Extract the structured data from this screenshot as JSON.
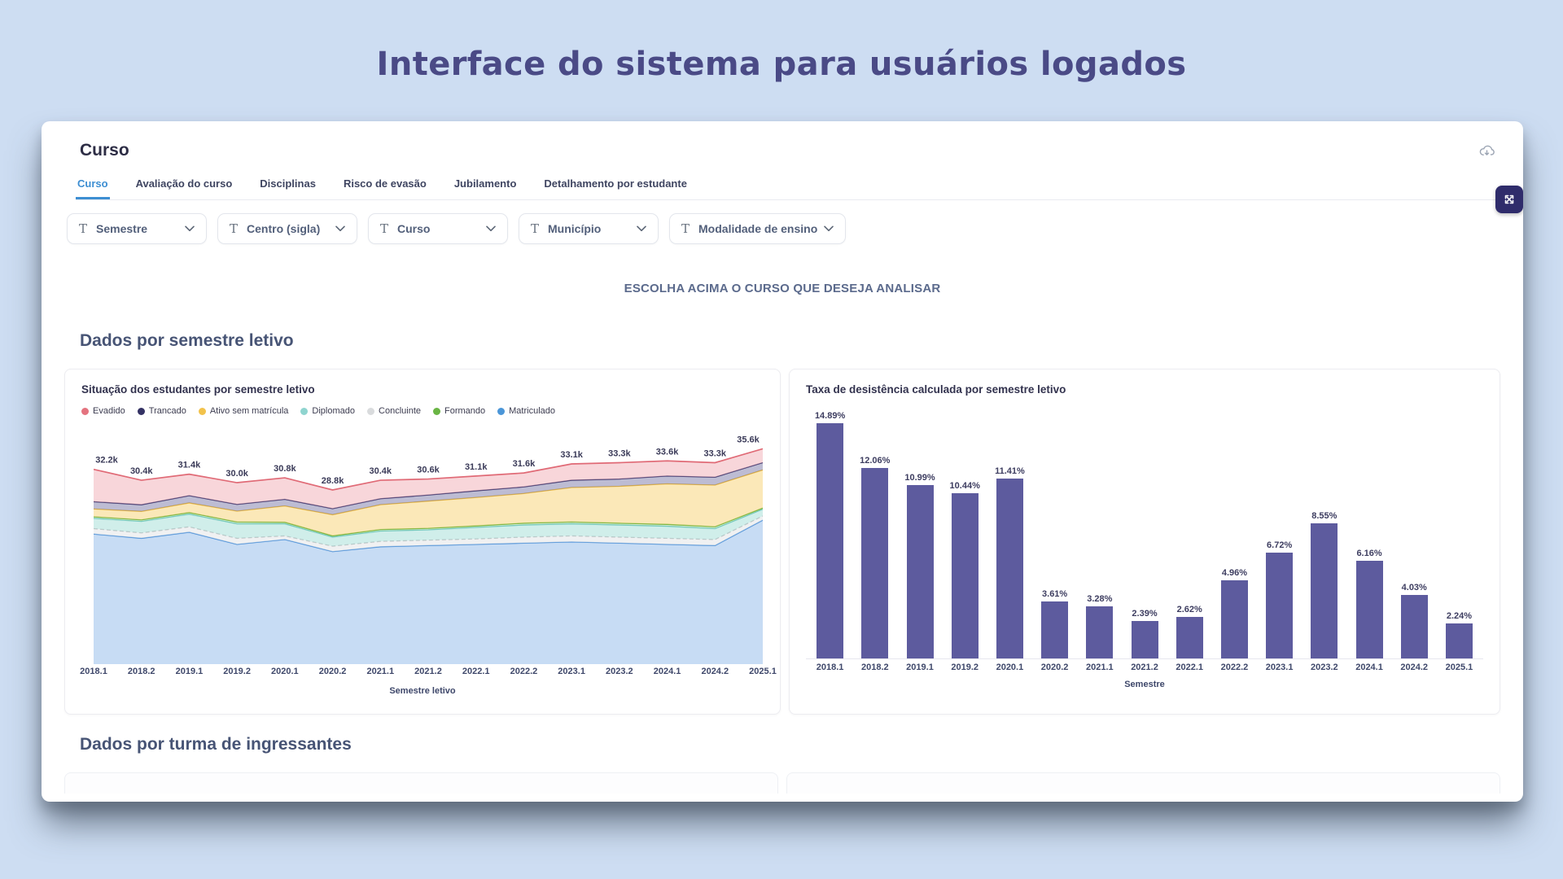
{
  "page_title": "Interface do sistema para usuários logados",
  "card": {
    "title": "Curso",
    "tabs": [
      {
        "label": "Curso",
        "active": true
      },
      {
        "label": "Avaliação do curso",
        "active": false
      },
      {
        "label": "Disciplinas",
        "active": false
      },
      {
        "label": "Risco de evasão",
        "active": false
      },
      {
        "label": "Jubilamento",
        "active": false
      },
      {
        "label": "Detalhamento por estudante",
        "active": false
      }
    ],
    "filters": [
      {
        "label": "Semestre"
      },
      {
        "label": "Centro (sigla)"
      },
      {
        "label": "Curso"
      },
      {
        "label": "Município"
      },
      {
        "label": "Modalidade de ensino"
      }
    ],
    "notice": "ESCOLHA ACIMA O CURSO QUE DESEJA ANALISAR",
    "section_semester_title": "Dados por semestre letivo",
    "section_cohort_title": "Dados por turma de ingressantes"
  },
  "icons": {
    "download": "cloud-download-icon",
    "expand": "expand-arrows-icon",
    "filter": "text-filter-icon",
    "chevron": "chevron-down-icon"
  },
  "colors": {
    "background": "#cdddf2",
    "title_indigo": "#4a4a86",
    "tab_active": "#3d8ed2",
    "bar": "#5d5b9e",
    "expand_button": "#2f2c6b"
  },
  "chart_data": [
    {
      "type": "area",
      "title": "Situação dos estudantes por semestre letivo",
      "xlabel": "Semestre letivo",
      "categories": [
        "2018.1",
        "2018.2",
        "2019.1",
        "2019.2",
        "2020.1",
        "2020.2",
        "2021.1",
        "2021.2",
        "2022.1",
        "2022.2",
        "2023.1",
        "2023.2",
        "2024.1",
        "2024.2",
        "2025.1"
      ],
      "total_labels": [
        "32.2k",
        "30.4k",
        "31.4k",
        "30.0k",
        "30.8k",
        "28.8k",
        "30.4k",
        "30.6k",
        "31.1k",
        "31.6k",
        "33.1k",
        "33.3k",
        "33.6k",
        "33.3k",
        "35.6k"
      ],
      "totals_k": [
        32.2,
        30.4,
        31.4,
        30.0,
        30.8,
        28.8,
        30.4,
        30.6,
        31.1,
        31.6,
        33.1,
        33.3,
        33.6,
        33.3,
        35.6
      ],
      "ylim_k": [
        0,
        37
      ],
      "grid": false,
      "legend_position": "top",
      "legend": [
        {
          "label": "Evadido",
          "color": "#e4737f"
        },
        {
          "label": "Trancado",
          "color": "#343264"
        },
        {
          "label": "Ativo sem matrícula",
          "color": "#f2c24b"
        },
        {
          "label": "Diplomado",
          "color": "#8fd4cf"
        },
        {
          "label": "Concluinte",
          "color": "#d9dbdd"
        },
        {
          "label": "Formando",
          "color": "#6ab544"
        },
        {
          "label": "Matriculado",
          "color": "#4b96d8"
        }
      ],
      "series_estimated_from_pixels": true,
      "series_bottom_up": [
        {
          "name": "Matriculado",
          "line": "#4a90d9",
          "fill": "#c7dcf4",
          "dashed": false,
          "values_k": [
            21.5,
            20.8,
            21.8,
            19.8,
            20.6,
            18.6,
            19.4,
            19.6,
            19.8,
            20.0,
            20.2,
            20.0,
            19.8,
            19.6,
            23.8
          ]
        },
        {
          "name": "Concluinte",
          "line": "#c4c6c8",
          "fill": "rgba(225,227,229,0.5)",
          "dashed": true,
          "values_k": [
            0.9,
            0.9,
            0.9,
            1.0,
            0.6,
            0.9,
            0.9,
            0.9,
            0.9,
            1.0,
            1.0,
            1.0,
            1.0,
            1.0,
            0.7
          ]
        },
        {
          "name": "Diplomado",
          "line": "#72c9c2",
          "fill": "rgba(150,217,209,0.45)",
          "dashed": false,
          "values_k": [
            1.7,
            1.9,
            2.1,
            2.4,
            2.0,
            1.5,
            1.7,
            1.7,
            1.9,
            2.0,
            2.0,
            2.0,
            2.0,
            1.8,
            1.1
          ]
        },
        {
          "name": "Formando",
          "line": "#67b23e",
          "fill": "rgba(150,205,130,0.3)",
          "dashed": false,
          "values_k": [
            0.25,
            0.25,
            0.25,
            0.3,
            0.25,
            0.2,
            0.25,
            0.25,
            0.25,
            0.3,
            0.3,
            0.3,
            0.3,
            0.3,
            0.2
          ]
        },
        {
          "name": "Ativo sem matrícula",
          "line": "#ecba3f",
          "fill": "rgba(246,205,97,0.45)",
          "dashed": false,
          "values_k": [
            1.3,
            1.4,
            1.6,
            1.8,
            2.7,
            3.5,
            4.1,
            4.5,
            4.7,
            4.9,
            5.7,
            6.1,
            6.7,
            6.9,
            6.3
          ]
        },
        {
          "name": "Trancado",
          "line": "#3b3970",
          "fill": "rgba(98,95,150,0.42)",
          "dashed": false,
          "values_k": [
            1.2,
            1.1,
            1.2,
            1.1,
            1.1,
            1.0,
            1.0,
            1.0,
            1.1,
            1.1,
            1.2,
            1.2,
            1.3,
            1.3,
            1.2
          ]
        },
        {
          "name": "Evadido",
          "line": "#e06a76",
          "fill": "rgba(240,164,172,0.45)",
          "dashed": false,
          "values_k": [
            5.35,
            4.05,
            3.55,
            3.6,
            3.55,
            3.1,
            3.05,
            2.65,
            2.45,
            2.3,
            2.7,
            2.7,
            2.5,
            2.4,
            2.3
          ]
        }
      ]
    },
    {
      "type": "bar",
      "title": "Taxa de desistência calculada por semestre letivo",
      "xlabel": "Semestre",
      "categories": [
        "2018.1",
        "2018.2",
        "2019.1",
        "2019.2",
        "2020.1",
        "2020.2",
        "2021.1",
        "2021.2",
        "2022.1",
        "2022.2",
        "2023.1",
        "2023.2",
        "2024.1",
        "2024.2",
        "2025.1"
      ],
      "values_pct": [
        14.89,
        12.06,
        10.99,
        10.44,
        11.41,
        3.61,
        3.28,
        2.39,
        2.62,
        4.96,
        6.72,
        8.55,
        6.16,
        4.03,
        2.24
      ],
      "value_labels": [
        "14.89%",
        "12.06%",
        "10.99%",
        "10.44%",
        "11.41%",
        "3.61%",
        "3.28%",
        "2.39%",
        "2.62%",
        "4.96%",
        "6.72%",
        "8.55%",
        "6.16%",
        "4.03%",
        "2.24%"
      ],
      "ylim": [
        0,
        15.95
      ],
      "grid": false,
      "bar_color": "#5d5b9e"
    }
  ]
}
